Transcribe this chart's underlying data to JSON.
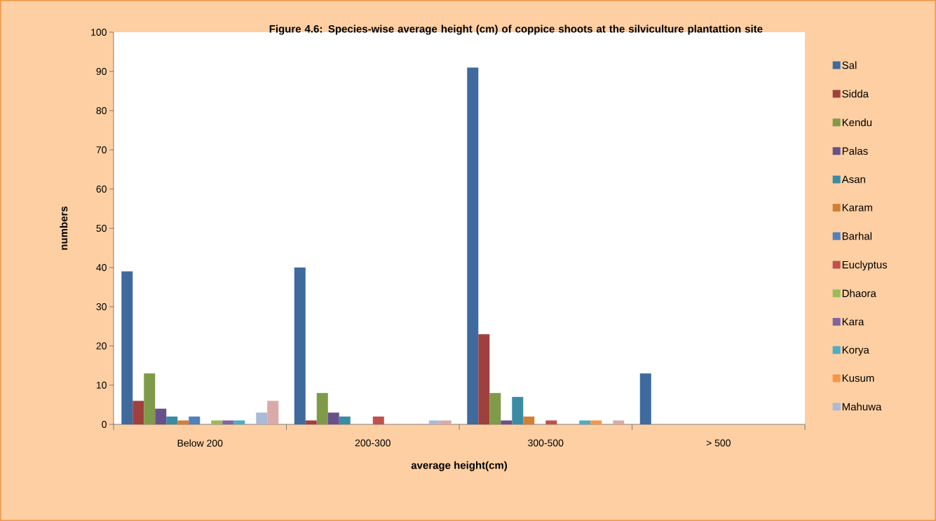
{
  "chart_data": {
    "type": "bar",
    "title": "Figure 4.6:  Species-wise average height (cm) of  coppice shoots at the silviculture plantattion site",
    "xlabel": "average height(cm)",
    "ylabel": "numbers",
    "categories": [
      "Below 200",
      "200-300",
      "300-500",
      "> 500"
    ],
    "ylim": [
      0,
      100
    ],
    "yticks": [
      0,
      10,
      20,
      30,
      40,
      50,
      60,
      70,
      80,
      90,
      100
    ],
    "grid": false,
    "legend": "right",
    "series": [
      {
        "name": "Sal",
        "color": "#3f6a9e",
        "values": [
          39,
          40,
          91,
          13
        ]
      },
      {
        "name": "Sidda",
        "color": "#a0403e",
        "values": [
          6,
          1,
          23,
          0
        ]
      },
      {
        "name": "Kendu",
        "color": "#7f9a48",
        "values": [
          13,
          8,
          8,
          0
        ]
      },
      {
        "name": "Palas",
        "color": "#68518a",
        "values": [
          4,
          3,
          1,
          0
        ]
      },
      {
        "name": "Asan",
        "color": "#3b8ba3",
        "values": [
          2,
          2,
          7,
          0
        ]
      },
      {
        "name": "Karam",
        "color": "#d17f35",
        "values": [
          1,
          0,
          2,
          0
        ]
      },
      {
        "name": "Barhal",
        "color": "#4f81bd",
        "values": [
          2,
          0,
          0,
          0
        ]
      },
      {
        "name": "Euclyptus",
        "color": "#c0504d",
        "values": [
          0,
          2,
          1,
          0
        ]
      },
      {
        "name": "Dhaora",
        "color": "#9bbb59",
        "values": [
          1,
          0,
          0,
          0
        ]
      },
      {
        "name": "Kara",
        "color": "#8064a2",
        "values": [
          1,
          0,
          0,
          0
        ]
      },
      {
        "name": "Korya",
        "color": "#4bacc6",
        "values": [
          1,
          0,
          1,
          0
        ]
      },
      {
        "name": "Kusum",
        "color": "#f79646",
        "values": [
          0,
          0,
          1,
          0
        ]
      },
      {
        "name": "Mahuwa",
        "color": "#aabad7",
        "values": [
          3,
          1,
          0,
          0
        ]
      },
      {
        "color": "#d9aaa9",
        "values": [
          6,
          1,
          1,
          0
        ]
      }
    ]
  }
}
